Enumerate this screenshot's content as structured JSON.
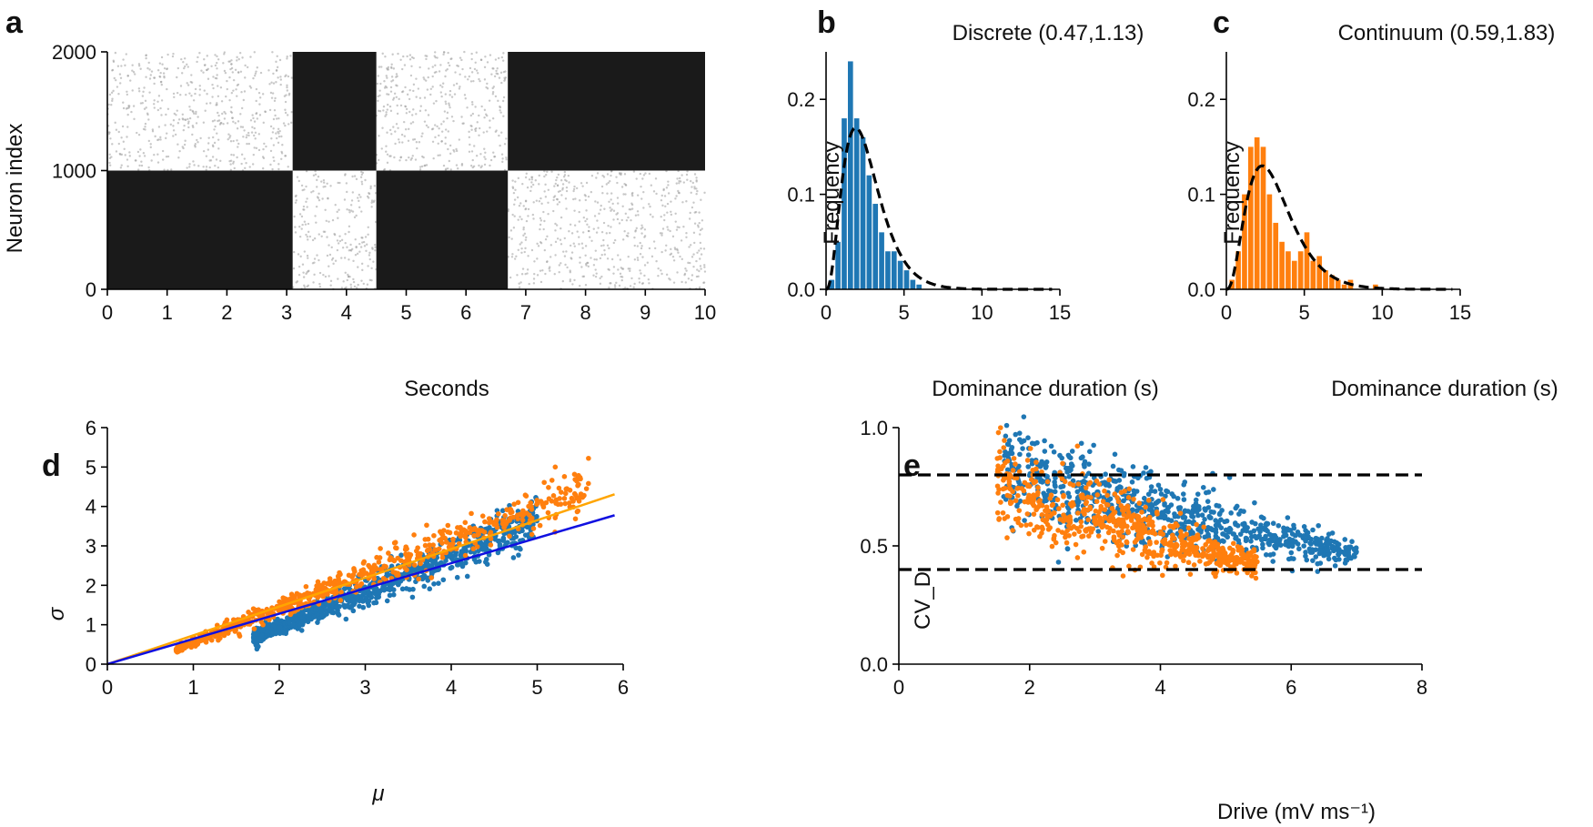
{
  "panels": {
    "a": "a",
    "b": "b",
    "c": "c",
    "d": "d",
    "e": "e"
  },
  "colors": {
    "blue": "#1f77b4",
    "orange": "#ff7f0e",
    "fit_blue": "#1010e0",
    "fit_orange": "#ffa500",
    "raster": "#1a1a1a"
  },
  "chart_data": [
    {
      "id": "a",
      "type": "scatter",
      "title": "",
      "xlabel": "Seconds",
      "ylabel": "Neuron index",
      "xlim": [
        0,
        10
      ],
      "ylim": [
        0,
        2000
      ],
      "xticks": [
        "0",
        "1",
        "2",
        "3",
        "4",
        "5",
        "6",
        "7",
        "8",
        "9",
        "10"
      ],
      "yticks": [
        "0",
        "1000",
        "2000"
      ],
      "dominance_switch_times": [
        0,
        3.1,
        4.5,
        6.7,
        10
      ],
      "dominant_population": [
        "low",
        "high",
        "low",
        "high"
      ]
    },
    {
      "id": "b",
      "type": "bar",
      "title": "Discrete (0.47,1.13)",
      "xlabel": "Dominance duration (s)",
      "ylabel": "Frequency",
      "xlim": [
        0,
        15
      ],
      "ylim": [
        0,
        0.25
      ],
      "xticks": [
        "0",
        "5",
        "10",
        "15"
      ],
      "yticks": [
        "0.0",
        "0.1",
        "0.2"
      ],
      "bin_width": 0.4,
      "bin_start": 0.2,
      "values": [
        0.01,
        0.05,
        0.18,
        0.24,
        0.18,
        0.16,
        0.12,
        0.09,
        0.06,
        0.04,
        0.04,
        0.03,
        0.02,
        0.01,
        0.005
      ],
      "fit_curve": {
        "type": "gamma",
        "peak_x": 1.9,
        "peak_y": 0.17
      }
    },
    {
      "id": "c",
      "type": "bar",
      "title": "Continuum (0.59,1.83)",
      "xlabel": "Dominance duration (s)",
      "ylabel": "Frequency",
      "xlim": [
        0,
        15
      ],
      "ylim": [
        0,
        0.25
      ],
      "xticks": [
        "0",
        "5",
        "10",
        "15"
      ],
      "yticks": [
        "0.0",
        "0.1",
        "0.2"
      ],
      "bin_width": 0.4,
      "bin_start": 0.2,
      "values": [
        0.01,
        0.04,
        0.1,
        0.15,
        0.16,
        0.15,
        0.1,
        0.07,
        0.05,
        0.04,
        0.03,
        0.04,
        0.06,
        0.03,
        0.035,
        0.02,
        0.015,
        0.01,
        0.005,
        0.01,
        0.0,
        0.0,
        0.0,
        0.005,
        0.0,
        0.0,
        0.0,
        0.0,
        0.0,
        0.0,
        0.0,
        0.0
      ],
      "fit_curve": {
        "type": "gamma",
        "peak_x": 2.3,
        "peak_y": 0.13
      }
    },
    {
      "id": "d",
      "type": "scatter",
      "title": "",
      "xlabel": "μ",
      "ylabel": "σ",
      "xlim": [
        0,
        6
      ],
      "ylim": [
        0,
        6
      ],
      "xticks": [
        "0",
        "1",
        "2",
        "3",
        "4",
        "5",
        "6"
      ],
      "yticks": [
        "0",
        "1",
        "2",
        "3",
        "4",
        "5",
        "6"
      ],
      "series": [
        {
          "name": "discrete",
          "color": "blue",
          "x_range": [
            1.7,
            5.0
          ],
          "slope": 0.88,
          "intercept": -0.8,
          "fit_slope": 0.64
        },
        {
          "name": "continuum",
          "color": "orange",
          "x_range": [
            0.8,
            5.6
          ],
          "slope": 0.86,
          "intercept": -0.3,
          "fit_slope": 0.73
        }
      ]
    },
    {
      "id": "e",
      "type": "scatter",
      "title": "",
      "xlabel": "Drive (mV ms⁻¹)",
      "ylabel": "CV_D",
      "xlim": [
        0,
        8
      ],
      "ylim": [
        0,
        1.0
      ],
      "xticks": [
        "0",
        "2",
        "4",
        "6",
        "8"
      ],
      "yticks": [
        "0.0",
        "0.5",
        "1.0"
      ],
      "hlines": [
        0.4,
        0.8
      ],
      "series": [
        {
          "name": "discrete",
          "color": "blue",
          "x_range": [
            1.6,
            7.0
          ],
          "y_start": 0.85,
          "y_end": 0.47
        },
        {
          "name": "continuum",
          "color": "orange",
          "x_range": [
            1.5,
            5.5
          ],
          "y_start": 0.8,
          "y_end": 0.42
        }
      ]
    }
  ]
}
